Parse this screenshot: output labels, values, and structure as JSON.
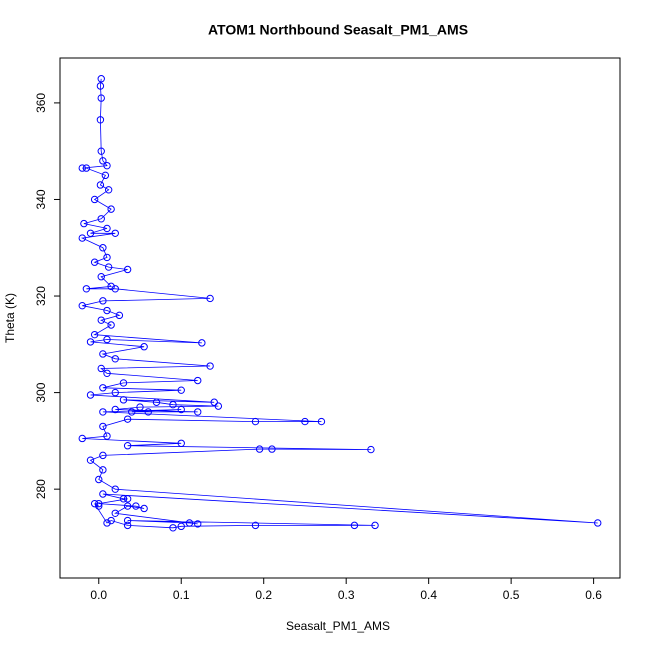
{
  "chart_data": {
    "type": "scatter-line",
    "title": "ATOM1 Northbound Seasalt_PM1_AMS",
    "x_label": "Seasalt_PM1_AMS",
    "y_label": "Theta (K)",
    "color": "#0000ff",
    "x": [
      0.003,
      0.002,
      0.003,
      0.002,
      0.003,
      0.005,
      0.01,
      -0.02,
      -0.015,
      0.008,
      0.002,
      0.012,
      -0.005,
      0.015,
      0.003,
      -0.018,
      0.01,
      -0.01,
      0.02,
      -0.02,
      0.005,
      0.01,
      -0.005,
      0.012,
      0.035,
      0.003,
      0.015,
      -0.015,
      0.02,
      0.135,
      0.005,
      -0.02,
      0.01,
      0.025,
      0.003,
      0.015,
      -0.005,
      0.125,
      0.01,
      -0.01,
      0.055,
      0.005,
      0.02,
      0.135,
      0.003,
      0.01,
      0.12,
      0.03,
      0.005,
      0.1,
      0.02,
      -0.01,
      0.14,
      0.03,
      0.07,
      0.09,
      0.145,
      0.05,
      0.02,
      0.12,
      0.06,
      0.04,
      0.1,
      0.005,
      0.27,
      0.25,
      0.19,
      0.035,
      0.005,
      0.01,
      -0.02,
      0.1,
      0.035,
      0.33,
      0.21,
      0.195,
      0.005,
      -0.01,
      0.005,
      0.0,
      0.02,
      0.605,
      0.005,
      0.03,
      0.035,
      0.0,
      0.045,
      0.055,
      0.035,
      0.02,
      0.12,
      0.11,
      0.035,
      0.335,
      0.31,
      0.19,
      0.1,
      0.09,
      0.035,
      0.015,
      0.01,
      -0.005,
      0.0
    ],
    "values": [
      365,
      363.5,
      361,
      356.5,
      350,
      348,
      347,
      346.5,
      346.5,
      345,
      343,
      342,
      340,
      338,
      336,
      335,
      334,
      333,
      333,
      332,
      330,
      328,
      327,
      326,
      325.5,
      324,
      322,
      321.5,
      321.5,
      319.5,
      319,
      318,
      317,
      316,
      315,
      314,
      312,
      310.3,
      311,
      310.5,
      309.5,
      308,
      307,
      305.5,
      305,
      304,
      302.5,
      302,
      301,
      300.5,
      300,
      299.5,
      298,
      298.5,
      298,
      297.5,
      297.2,
      297,
      296.5,
      296,
      296,
      296,
      296.5,
      296,
      294,
      294,
      294,
      294.5,
      293,
      291,
      290.5,
      289.5,
      289,
      288.2,
      288.3,
      288.3,
      287,
      286,
      284,
      282,
      280,
      273,
      279,
      278,
      278,
      277,
      276.5,
      276,
      276.5,
      275,
      272.8,
      273,
      273.5,
      272.5,
      272.5,
      272.5,
      272.3,
      272,
      272.5,
      273.5,
      273,
      277,
      276.5
    ],
    "xlim": [
      -0.047,
      0.632
    ],
    "ylim": [
      261.6,
      369.3
    ],
    "xticks": [
      {
        "value": 0,
        "label": "0.0"
      },
      0.1,
      0.2,
      0.3,
      0.4,
      0.5,
      0.6
    ],
    "yticks": [
      280,
      300,
      320,
      340,
      360
    ]
  }
}
